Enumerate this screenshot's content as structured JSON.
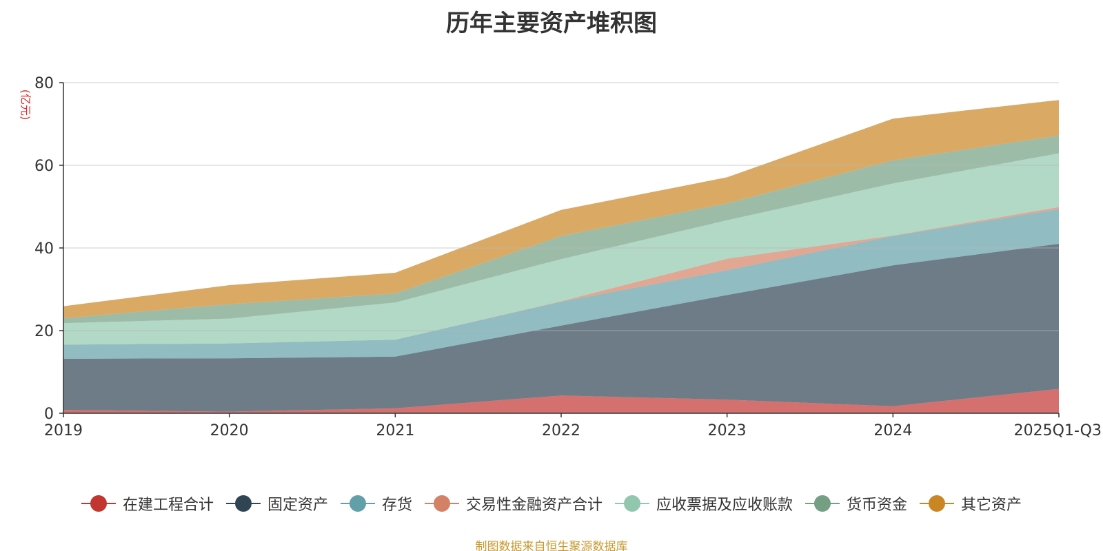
{
  "chart_data": {
    "type": "area",
    "stacked": true,
    "title": "历年主要资产堆积图",
    "ylabel": "(亿元)",
    "xlabel": "",
    "ylim": [
      0,
      80
    ],
    "yticks": [
      0,
      20,
      40,
      60,
      80
    ],
    "grid": true,
    "legend_position": "bottom",
    "categories": [
      "2019",
      "2020",
      "2021",
      "2022",
      "2023",
      "2024",
      "2025Q1-Q3"
    ],
    "series": [
      {
        "name": "在建工程合计",
        "color": "#c23531",
        "values": [
          0.8,
          0.4,
          1.2,
          4.3,
          3.3,
          1.7,
          5.9
        ]
      },
      {
        "name": "固定资产",
        "color": "#2f4554",
        "values": [
          12.4,
          12.9,
          12.5,
          16.9,
          25.3,
          34.1,
          35.1
        ]
      },
      {
        "name": "存货",
        "color": "#61a0a8",
        "values": [
          3.4,
          3.6,
          4.1,
          5.8,
          6.0,
          7.1,
          8.4
        ]
      },
      {
        "name": "交易性金融资产合计",
        "color": "#d48265",
        "values": [
          0.0,
          0.0,
          0.0,
          0.1,
          2.8,
          0.1,
          0.5
        ]
      },
      {
        "name": "应收票据及应收账款",
        "color": "#91c7ae",
        "values": [
          5.2,
          6.0,
          9.0,
          10.2,
          9.3,
          12.6,
          13.0
        ]
      },
      {
        "name": "货币资金",
        "color": "#749f83",
        "values": [
          1.2,
          3.5,
          2.2,
          5.6,
          4.1,
          5.6,
          4.3
        ]
      },
      {
        "name": "其它资产",
        "color": "#ca8622",
        "values": [
          2.9,
          4.6,
          5.0,
          6.3,
          6.3,
          10.1,
          8.6
        ]
      }
    ]
  },
  "source_note": "制图数据来自恒生聚源数据库"
}
